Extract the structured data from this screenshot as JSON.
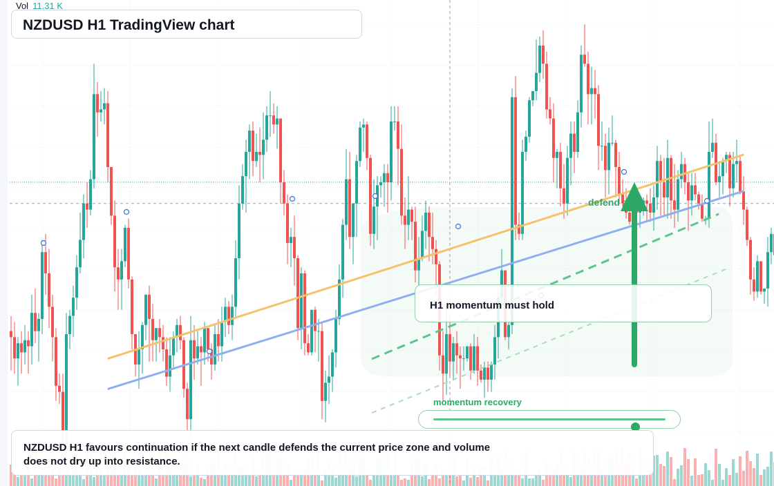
{
  "chart": {
    "title": "NZDUSD H1 TradingView chart",
    "volume_label": "Vol",
    "volume_value": "11.31 K"
  },
  "annotations": {
    "callout": "H1 momentum must hold",
    "defend_label": "defend zone",
    "slider_label": "momentum recovery",
    "slider_level": 0.87,
    "summary": "NZDUSD H1 favours continuation if the next candle defends the current price zone and volume does not dry up into resistance."
  },
  "colors": {
    "up": "#26a69a",
    "down": "#ef5350",
    "resistance_line": "#f5c26b",
    "support_line": "#8eaef0",
    "accent_green": "#2ea867"
  },
  "chart_data": {
    "type": "candlestick",
    "timeframe": "H1",
    "candles": [
      [
        0.5876,
        0.5874,
        0.5863,
        0.5881
      ],
      [
        0.5874,
        0.5867,
        0.5862,
        0.5879
      ],
      [
        0.5867,
        0.5872,
        0.5858,
        0.5874
      ],
      [
        0.5872,
        0.5869,
        0.5862,
        0.5876
      ],
      [
        0.5869,
        0.5873,
        0.5865,
        0.5878
      ],
      [
        0.5873,
        0.5871,
        0.5862,
        0.5876
      ],
      [
        0.5871,
        0.5882,
        0.5865,
        0.5888
      ],
      [
        0.5882,
        0.5876,
        0.5872,
        0.589
      ],
      [
        0.5876,
        0.588,
        0.5866,
        0.5882
      ],
      [
        0.588,
        0.5902,
        0.5875,
        0.5906
      ],
      [
        0.5902,
        0.5895,
        0.5888,
        0.5908
      ],
      [
        0.5895,
        0.5884,
        0.5877,
        0.5903
      ],
      [
        0.5884,
        0.5874,
        0.5866,
        0.5888
      ],
      [
        0.5874,
        0.5858,
        0.5853,
        0.5877
      ],
      [
        0.5858,
        0.5856,
        0.5852,
        0.5862
      ],
      [
        0.5856,
        0.5837,
        0.5832,
        0.5862
      ],
      [
        0.5837,
        0.5875,
        0.5833,
        0.5882
      ],
      [
        0.5875,
        0.5881,
        0.587,
        0.5883
      ],
      [
        0.5881,
        0.5887,
        0.5874,
        0.5891
      ],
      [
        0.5887,
        0.5897,
        0.5883,
        0.5901
      ],
      [
        0.5897,
        0.5906,
        0.5895,
        0.5915
      ],
      [
        0.5906,
        0.5918,
        0.59,
        0.5921
      ],
      [
        0.5918,
        0.5916,
        0.591,
        0.5925
      ],
      [
        0.5916,
        0.5926,
        0.5914,
        0.5929
      ],
      [
        0.5926,
        0.5954,
        0.5923,
        0.5964
      ],
      [
        0.5954,
        0.5948,
        0.594,
        0.5958
      ],
      [
        0.5948,
        0.5949,
        0.5945,
        0.5955
      ],
      [
        0.5949,
        0.5951,
        0.5944,
        0.5956
      ],
      [
        0.5951,
        0.593,
        0.5925,
        0.5955
      ],
      [
        0.593,
        0.5914,
        0.5911,
        0.593
      ],
      [
        0.5914,
        0.5897,
        0.5889,
        0.5919
      ],
      [
        0.5897,
        0.5893,
        0.5883,
        0.5903
      ],
      [
        0.5893,
        0.5899,
        0.5883,
        0.5903
      ],
      [
        0.5899,
        0.591,
        0.5897,
        0.5911
      ],
      [
        0.591,
        0.5893,
        0.589,
        0.5913
      ],
      [
        0.5893,
        0.5875,
        0.587,
        0.5894
      ],
      [
        0.5875,
        0.5865,
        0.5861,
        0.5875
      ],
      [
        0.5865,
        0.587,
        0.5857,
        0.5876
      ],
      [
        0.587,
        0.5878,
        0.5862,
        0.5879
      ],
      [
        0.5878,
        0.5888,
        0.5873,
        0.5888
      ],
      [
        0.5888,
        0.588,
        0.5866,
        0.5891
      ],
      [
        0.588,
        0.5873,
        0.5866,
        0.5885
      ],
      [
        0.5873,
        0.5877,
        0.5866,
        0.5877
      ],
      [
        0.5877,
        0.5874,
        0.5869,
        0.588
      ],
      [
        0.5874,
        0.587,
        0.5866,
        0.5878
      ],
      [
        0.587,
        0.5861,
        0.5858,
        0.5874
      ],
      [
        0.5861,
        0.5868,
        0.5856,
        0.5874
      ],
      [
        0.5868,
        0.5874,
        0.5864,
        0.5876
      ],
      [
        0.5874,
        0.5878,
        0.5869,
        0.588
      ],
      [
        0.5878,
        0.5873,
        0.587,
        0.5881
      ],
      [
        0.5873,
        0.5857,
        0.5854,
        0.5874
      ],
      [
        0.5857,
        0.5847,
        0.5843,
        0.5859
      ],
      [
        0.5847,
        0.5873,
        0.584,
        0.5881
      ],
      [
        0.5873,
        0.5867,
        0.586,
        0.5878
      ],
      [
        0.5867,
        0.5871,
        0.5865,
        0.5876
      ],
      [
        0.5871,
        0.5869,
        0.5858,
        0.5874
      ],
      [
        0.5869,
        0.5877,
        0.5865,
        0.5879
      ],
      [
        0.5877,
        0.587,
        0.5866,
        0.5877
      ],
      [
        0.587,
        0.5865,
        0.586,
        0.5872
      ],
      [
        0.5865,
        0.5875,
        0.5863,
        0.5878
      ],
      [
        0.5875,
        0.5871,
        0.5866,
        0.588
      ],
      [
        0.5871,
        0.5879,
        0.5866,
        0.5884
      ],
      [
        0.5879,
        0.5884,
        0.5874,
        0.5887
      ],
      [
        0.5884,
        0.5878,
        0.5875,
        0.5886
      ],
      [
        0.5878,
        0.5884,
        0.5873,
        0.5888
      ],
      [
        0.5884,
        0.59,
        0.588,
        0.5906
      ],
      [
        0.59,
        0.5918,
        0.5893,
        0.5924
      ],
      [
        0.5918,
        0.5927,
        0.5916,
        0.5931
      ],
      [
        0.5927,
        0.5935,
        0.5915,
        0.5939
      ],
      [
        0.5935,
        0.5942,
        0.5926,
        0.5944
      ],
      [
        0.5942,
        0.5932,
        0.5927,
        0.5945
      ],
      [
        0.5932,
        0.5935,
        0.593,
        0.5941
      ],
      [
        0.5935,
        0.5934,
        0.5925,
        0.5943
      ],
      [
        0.5934,
        0.5939,
        0.5926,
        0.5948
      ],
      [
        0.5939,
        0.5947,
        0.5935,
        0.595
      ],
      [
        0.5947,
        0.5947,
        0.594,
        0.5955
      ],
      [
        0.5947,
        0.5944,
        0.5941,
        0.5951
      ],
      [
        0.5944,
        0.5946,
        0.5936,
        0.595
      ],
      [
        0.5946,
        0.5925,
        0.5918,
        0.5946
      ],
      [
        0.5925,
        0.5918,
        0.5914,
        0.5929
      ],
      [
        0.5918,
        0.5905,
        0.5898,
        0.5921
      ],
      [
        0.5905,
        0.5907,
        0.5897,
        0.591
      ],
      [
        0.5907,
        0.59,
        0.5891,
        0.5914
      ],
      [
        0.59,
        0.5877,
        0.5873,
        0.5901
      ],
      [
        0.5877,
        0.5895,
        0.587,
        0.5897
      ],
      [
        0.5895,
        0.5872,
        0.5868,
        0.5896
      ],
      [
        0.5872,
        0.5869,
        0.5868,
        0.5875
      ],
      [
        0.5869,
        0.5883,
        0.5868,
        0.5883
      ],
      [
        0.5883,
        0.5876,
        0.5869,
        0.5884
      ],
      [
        0.5876,
        0.5876,
        0.5866,
        0.588
      ],
      [
        0.5876,
        0.5853,
        0.5847,
        0.5879
      ],
      [
        0.5853,
        0.5859,
        0.5846,
        0.5863
      ],
      [
        0.5859,
        0.5861,
        0.5852,
        0.5868
      ],
      [
        0.5861,
        0.5869,
        0.5856,
        0.587
      ],
      [
        0.5869,
        0.588,
        0.5864,
        0.5883
      ],
      [
        0.588,
        0.5893,
        0.5878,
        0.5898
      ],
      [
        0.5893,
        0.5911,
        0.5887,
        0.5913
      ],
      [
        0.5911,
        0.5926,
        0.5906,
        0.5936
      ],
      [
        0.5926,
        0.5907,
        0.5903,
        0.5935
      ],
      [
        0.5907,
        0.5918,
        0.5898,
        0.5918
      ],
      [
        0.5918,
        0.5932,
        0.5907,
        0.5934
      ],
      [
        0.5932,
        0.5943,
        0.593,
        0.5945
      ],
      [
        0.5943,
        0.5944,
        0.5935,
        0.5946
      ],
      [
        0.5944,
        0.5933,
        0.5929,
        0.5945
      ],
      [
        0.5933,
        0.5908,
        0.5904,
        0.5934
      ],
      [
        0.5908,
        0.5917,
        0.5903,
        0.5926
      ],
      [
        0.5917,
        0.5924,
        0.5906,
        0.5927
      ],
      [
        0.5924,
        0.5925,
        0.592,
        0.5927
      ],
      [
        0.5925,
        0.5928,
        0.5917,
        0.5931
      ],
      [
        0.5928,
        0.5925,
        0.5915,
        0.5931
      ],
      [
        0.5925,
        0.5945,
        0.5919,
        0.595
      ],
      [
        0.5945,
        0.5945,
        0.5942,
        0.595
      ],
      [
        0.5945,
        0.5936,
        0.5924,
        0.595
      ],
      [
        0.5936,
        0.5914,
        0.5911,
        0.5944
      ],
      [
        0.5914,
        0.5911,
        0.5903,
        0.592
      ],
      [
        0.5911,
        0.5916,
        0.5906,
        0.5927
      ],
      [
        0.5916,
        0.5912,
        0.5906,
        0.5917
      ],
      [
        0.5912,
        0.5896,
        0.5892,
        0.5917
      ],
      [
        0.5896,
        0.59,
        0.5891,
        0.5907
      ],
      [
        0.59,
        0.5909,
        0.5899,
        0.5914
      ],
      [
        0.5909,
        0.5915,
        0.5903,
        0.5919
      ],
      [
        0.5915,
        0.5907,
        0.5899,
        0.5917
      ],
      [
        0.5907,
        0.5903,
        0.5898,
        0.5915
      ],
      [
        0.5903,
        0.5898,
        0.5888,
        0.5906
      ],
      [
        0.5898,
        0.5868,
        0.5863,
        0.5899
      ],
      [
        0.5868,
        0.5862,
        0.5853,
        0.5876
      ],
      [
        0.5862,
        0.5875,
        0.5855,
        0.5884
      ],
      [
        0.5875,
        0.5866,
        0.5861,
        0.5881
      ],
      [
        0.5866,
        0.5872,
        0.586,
        0.5874
      ],
      [
        0.5872,
        0.5868,
        0.5862,
        0.5876
      ],
      [
        0.5868,
        0.5867,
        0.5857,
        0.5871
      ],
      [
        0.5867,
        0.5867,
        0.5863,
        0.5871
      ],
      [
        0.5867,
        0.5871,
        0.5866,
        0.5871
      ],
      [
        0.5871,
        0.5863,
        0.586,
        0.5872
      ],
      [
        0.5863,
        0.5871,
        0.5862,
        0.5875
      ],
      [
        0.5871,
        0.5863,
        0.5858,
        0.5874
      ],
      [
        0.5863,
        0.586,
        0.5859,
        0.5865
      ],
      [
        0.586,
        0.5864,
        0.5854,
        0.5866
      ],
      [
        0.5864,
        0.586,
        0.5856,
        0.5866
      ],
      [
        0.586,
        0.5865,
        0.5856,
        0.5866
      ],
      [
        0.5865,
        0.5874,
        0.586,
        0.5878
      ],
      [
        0.5874,
        0.5887,
        0.5867,
        0.589
      ],
      [
        0.5887,
        0.5896,
        0.5885,
        0.5903
      ],
      [
        0.5896,
        0.5874,
        0.5873,
        0.5896
      ],
      [
        0.5874,
        0.5878,
        0.587,
        0.588
      ],
      [
        0.5878,
        0.5953,
        0.5875,
        0.5956
      ],
      [
        0.5953,
        0.5911,
        0.5906,
        0.596
      ],
      [
        0.5911,
        0.5908,
        0.5906,
        0.5915
      ],
      [
        0.5908,
        0.5935,
        0.5906,
        0.5939
      ],
      [
        0.5935,
        0.594,
        0.5932,
        0.5942
      ],
      [
        0.594,
        0.5952,
        0.5938,
        0.5953
      ],
      [
        0.5952,
        0.5955,
        0.595,
        0.5955
      ],
      [
        0.5955,
        0.5961,
        0.5952,
        0.5972
      ],
      [
        0.5961,
        0.597,
        0.5958,
        0.5973
      ],
      [
        0.597,
        0.5964,
        0.5959,
        0.5975
      ],
      [
        0.5964,
        0.5949,
        0.5946,
        0.5968
      ],
      [
        0.5949,
        0.5946,
        0.5944,
        0.5953
      ],
      [
        0.5946,
        0.5933,
        0.5925,
        0.5951
      ],
      [
        0.5933,
        0.5935,
        0.5923,
        0.5936
      ],
      [
        0.5935,
        0.5923,
        0.5917,
        0.5938
      ],
      [
        0.5923,
        0.5918,
        0.5913,
        0.5931
      ],
      [
        0.5918,
        0.5933,
        0.5914,
        0.5937
      ],
      [
        0.5933,
        0.5941,
        0.5924,
        0.5945
      ],
      [
        0.5941,
        0.5935,
        0.5928,
        0.5945
      ],
      [
        0.5935,
        0.5948,
        0.5933,
        0.5952
      ],
      [
        0.5948,
        0.5967,
        0.5943,
        0.597
      ],
      [
        0.5967,
        0.5964,
        0.5963,
        0.5977
      ],
      [
        0.5964,
        0.5954,
        0.5944,
        0.5968
      ],
      [
        0.5954,
        0.5956,
        0.5944,
        0.5963
      ],
      [
        0.5956,
        0.5954,
        0.5946,
        0.5962
      ],
      [
        0.5954,
        0.5937,
        0.5929,
        0.5957
      ],
      [
        0.5937,
        0.5937,
        0.5932,
        0.5945
      ],
      [
        0.5937,
        0.5929,
        0.592,
        0.5941
      ],
      [
        0.5929,
        0.5938,
        0.5921,
        0.5943
      ],
      [
        0.5938,
        0.5938,
        0.5937,
        0.5947
      ],
      [
        0.5938,
        0.593,
        0.592,
        0.5939
      ],
      [
        0.593,
        0.5921,
        0.5918,
        0.5935
      ],
      [
        0.5921,
        0.5918,
        0.5917,
        0.5926
      ],
      [
        0.5918,
        0.5915,
        0.5913,
        0.5923
      ],
      [
        0.5915,
        0.5912,
        0.5911,
        0.5917
      ],
      [
        0.5912,
        0.5916,
        0.5909,
        0.5919
      ],
      [
        0.5916,
        0.5915,
        0.5911,
        0.5919
      ],
      [
        0.5915,
        0.5917,
        0.591,
        0.5919
      ],
      [
        0.5917,
        0.5919,
        0.5914,
        0.592
      ],
      [
        0.5919,
        0.5918,
        0.5912,
        0.5921
      ],
      [
        0.5918,
        0.5915,
        0.5912,
        0.5923
      ],
      [
        0.5915,
        0.592,
        0.5909,
        0.5924
      ],
      [
        0.592,
        0.5932,
        0.5916,
        0.5937
      ],
      [
        0.5932,
        0.5925,
        0.5914,
        0.5934
      ],
      [
        0.5925,
        0.592,
        0.5914,
        0.5933
      ],
      [
        0.592,
        0.5933,
        0.5913,
        0.5939
      ],
      [
        0.5933,
        0.5919,
        0.5913,
        0.5934
      ],
      [
        0.5919,
        0.5916,
        0.591,
        0.5931
      ],
      [
        0.5916,
        0.5926,
        0.5912,
        0.5929
      ],
      [
        0.5926,
        0.5931,
        0.5923,
        0.5935
      ],
      [
        0.5931,
        0.5925,
        0.5921,
        0.5933
      ],
      [
        0.5925,
        0.5919,
        0.5909,
        0.5928
      ],
      [
        0.5919,
        0.5924,
        0.5914,
        0.5928
      ],
      [
        0.5924,
        0.5921,
        0.5919,
        0.5928
      ],
      [
        0.5921,
        0.5918,
        0.5916,
        0.5922
      ],
      [
        0.5918,
        0.5913,
        0.5912,
        0.5921
      ],
      [
        0.5913,
        0.5913,
        0.5911,
        0.5914
      ],
      [
        0.5913,
        0.5935,
        0.591,
        0.5945
      ],
      [
        0.5935,
        0.5938,
        0.5933,
        0.5946
      ],
      [
        0.5938,
        0.5925,
        0.5924,
        0.5941
      ],
      [
        0.5925,
        0.5927,
        0.592,
        0.5932
      ],
      [
        0.5927,
        0.5932,
        0.5921,
        0.5933
      ],
      [
        0.5932,
        0.5934,
        0.5928,
        0.5935
      ],
      [
        0.5934,
        0.5923,
        0.5917,
        0.5935
      ],
      [
        0.5923,
        0.5931,
        0.592,
        0.5935
      ],
      [
        0.5931,
        0.5932,
        0.5925,
        0.5939
      ],
      [
        0.5932,
        0.5922,
        0.5921,
        0.5934
      ],
      [
        0.5922,
        0.5916,
        0.5911,
        0.5927
      ],
      [
        0.5916,
        0.5906,
        0.5904,
        0.5917
      ],
      [
        0.5906,
        0.5893,
        0.5888,
        0.5907
      ],
      [
        0.5893,
        0.5889,
        0.5886,
        0.5897
      ],
      [
        0.5889,
        0.5899,
        0.5887,
        0.5901
      ],
      [
        0.5899,
        0.5889,
        0.5888,
        0.5899
      ],
      [
        0.5889,
        0.589,
        0.5885,
        0.589
      ],
      [
        0.589,
        0.5902,
        0.5884,
        0.5907
      ],
      [
        0.5902,
        0.5908,
        0.5898,
        0.591
      ],
      [
        0.5908,
        0.5901,
        0.5894,
        0.5912
      ],
      [
        0.5901,
        0.5909,
        0.5899,
        0.5911
      ],
      [
        0.5909,
        0.5917,
        0.5907,
        0.5924
      ],
      [
        0.5917,
        0.5916,
        0.5914,
        0.592
      ]
    ],
    "ylim": [
      0.5825,
      0.5985
    ],
    "grid": true,
    "resistance_line": [
      0.5867,
      0.5934
    ],
    "support_line": [
      0.5857,
      0.5922
    ],
    "price_level_dashed": 0.5918,
    "price_level_dotted": 0.5925
  }
}
